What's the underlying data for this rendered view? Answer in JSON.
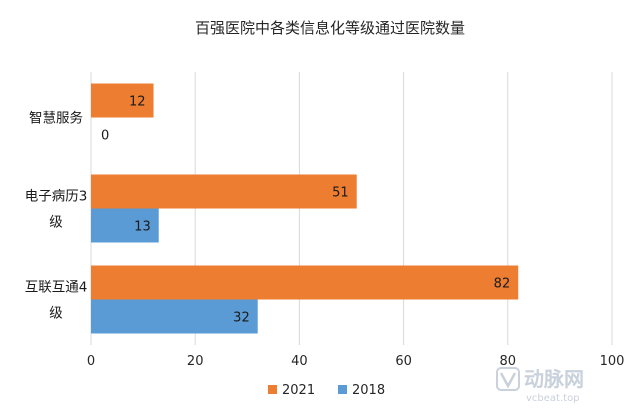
{
  "chart_data": {
    "type": "bar",
    "orientation": "horizontal",
    "title": "百强医院中各类信息化等级通过医院数量",
    "categories": [
      [
        "智慧服务"
      ],
      [
        "电子病历3",
        "级"
      ],
      [
        "互联互通4",
        "级"
      ]
    ],
    "series": [
      {
        "name": "2021",
        "color": "#ED7D31",
        "values": [
          12,
          51,
          82
        ]
      },
      {
        "name": "2018",
        "color": "#5B9BD5",
        "values": [
          0,
          13,
          32
        ]
      }
    ],
    "xlim": [
      0,
      100
    ],
    "xticks": [
      0,
      20,
      40,
      60,
      80,
      100
    ],
    "grid": true,
    "legend": "bottom",
    "xlabel": "",
    "ylabel": ""
  },
  "watermark": {
    "logo_text": "动脉网",
    "url_text": "vcbeat.top"
  }
}
